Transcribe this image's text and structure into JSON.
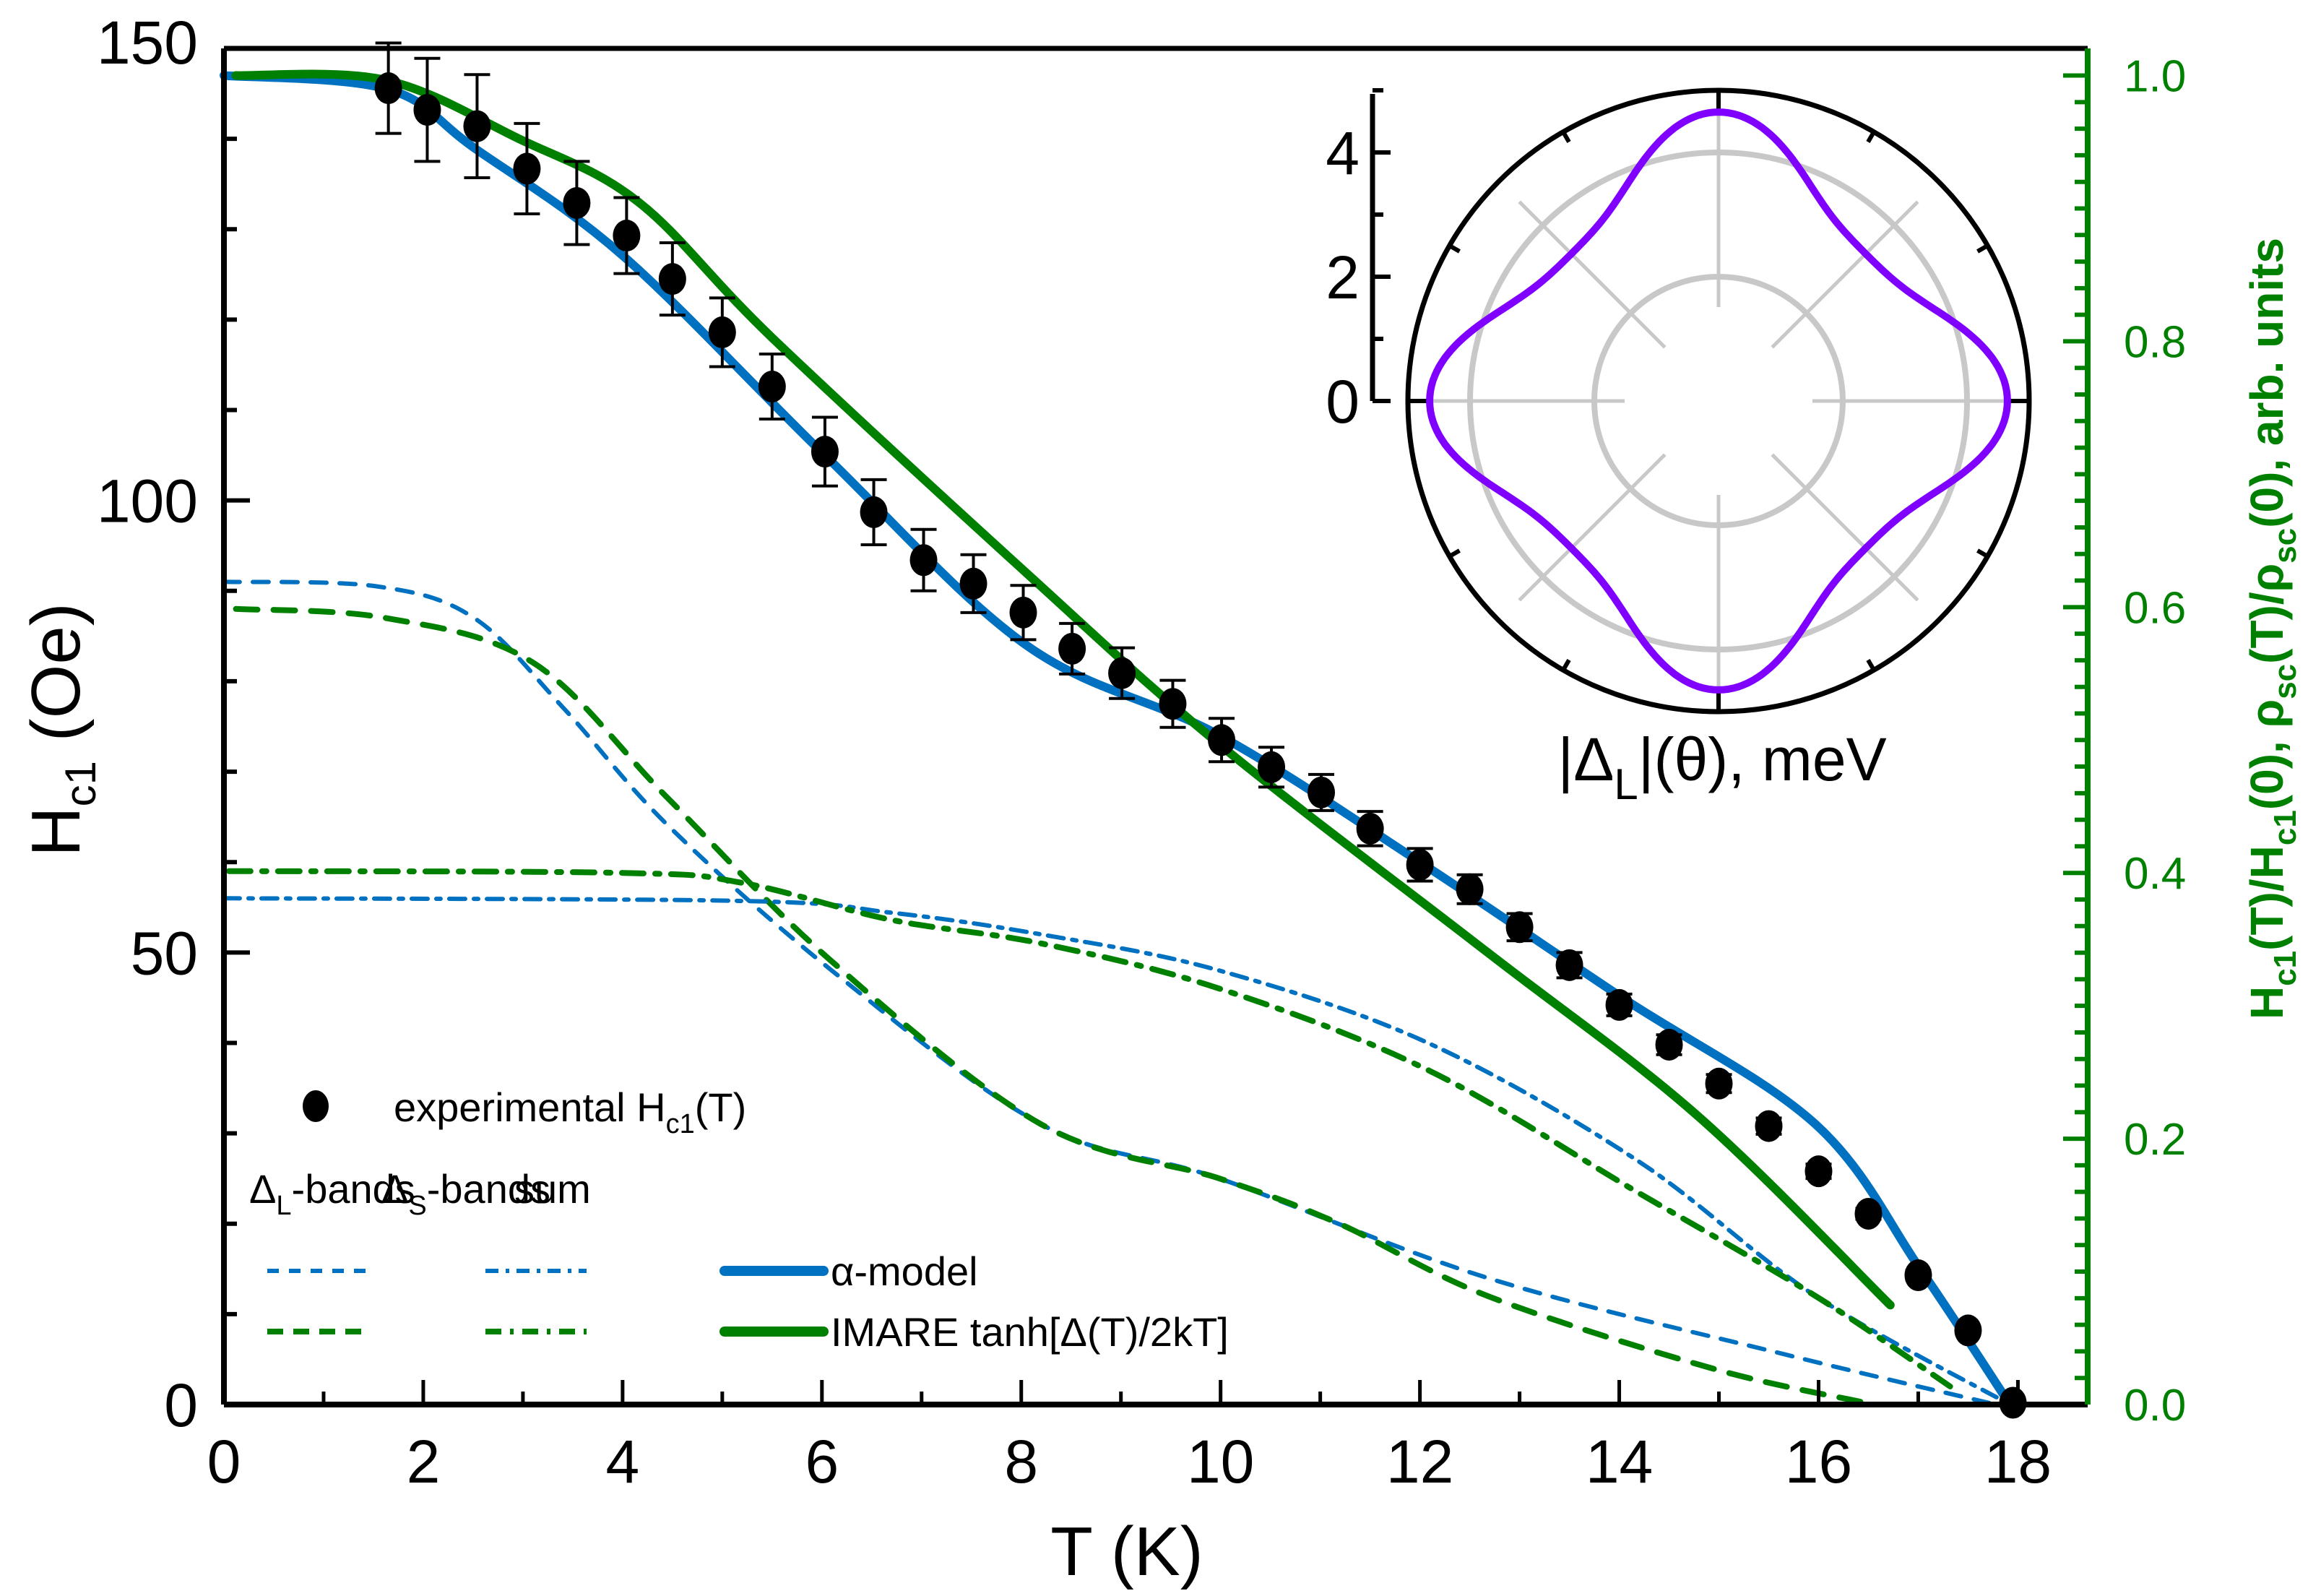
{
  "chart_data": {
    "type": "scatter",
    "title": "",
    "xlabel": "T (K)",
    "ylabel": {
      "main": "H",
      "sub": "c1",
      "unit": " (Oe)"
    },
    "ylabel_right": {
      "parts": [
        {
          "t": "H"
        },
        {
          "t": "c1",
          "sub": true
        },
        {
          "t": "(T)/H"
        },
        {
          "t": "c1",
          "sub": true
        },
        {
          "t": "(0), ρ"
        },
        {
          "t": "sc",
          "sub": true
        },
        {
          "t": "(T)/ρ"
        },
        {
          "t": "sc",
          "sub": true
        },
        {
          "t": "(0), arb. units"
        }
      ]
    },
    "xlim": [
      0,
      18.7
    ],
    "ylim": [
      0,
      150
    ],
    "ylim_right": [
      0,
      1.0
    ],
    "xticks": [
      "0",
      "2",
      "4",
      "6",
      "8",
      "10",
      "12",
      "14",
      "16",
      "18"
    ],
    "xtick_values": [
      0,
      2,
      4,
      6,
      8,
      10,
      12,
      14,
      16,
      18
    ],
    "yticks": [
      "0",
      "50",
      "100",
      "150"
    ],
    "ytick_values": [
      0,
      50,
      100,
      150
    ],
    "yticks_right": [
      "0.0",
      "0.2",
      "0.4",
      "0.6",
      "0.8",
      "1.0"
    ],
    "ytick_right_values": [
      0,
      0.2,
      0.4,
      0.6,
      0.8,
      1.0
    ],
    "grid": false,
    "legend_placement": "bottom-left",
    "colors": {
      "alpha": "#0070C0",
      "imare": "#008000",
      "points": "#000000",
      "polar": "#8000FF",
      "polar_grid": "#C8C8C8",
      "right_axis": "#008000"
    },
    "experimental": {
      "name": "experimental H_c1(T)",
      "T": [
        1.65,
        2.04,
        2.54,
        3.04,
        3.54,
        4.04,
        4.5,
        5.0,
        5.5,
        6.03,
        6.52,
        7.02,
        7.52,
        8.02,
        8.51,
        9.01,
        9.52,
        10.01,
        10.51,
        11.01,
        11.5,
        12.0,
        12.5,
        13.0,
        13.5,
        14.0,
        14.5,
        15.0,
        15.5,
        16.0,
        16.5,
        17.0,
        17.5,
        17.95
      ],
      "H": [
        145.6,
        143.2,
        141.4,
        136.7,
        132.9,
        129.3,
        124.5,
        118.6,
        112.6,
        105.4,
        98.7,
        93.4,
        90.8,
        87.6,
        83.6,
        80.9,
        77.5,
        73.5,
        70.5,
        67.7,
        63.7,
        59.7,
        57.0,
        52.8,
        48.6,
        44.2,
        39.8,
        35.5,
        30.8,
        25.8,
        21.1,
        14.3,
        8.2,
        0.2
      ],
      "err": [
        5.0,
        5.7,
        5.7,
        5.0,
        4.6,
        4.2,
        4.0,
        3.8,
        3.6,
        3.8,
        3.6,
        3.4,
        3.2,
        3.0,
        2.8,
        2.8,
        2.6,
        2.4,
        2.2,
        2.0,
        1.9,
        1.8,
        1.6,
        1.5,
        1.4,
        1.2,
        1.1,
        1.0,
        0.9,
        0.8,
        0.6,
        0.5,
        0.4,
        0.3
      ]
    },
    "series": [
      {
        "name": "α-model sum",
        "style": "solid",
        "color": "#0070C0",
        "T": [
          0,
          1.64,
          2.51,
          4.01,
          6.03,
          8.05,
          9.99,
          12.0,
          14.03,
          15.97,
          17.02,
          17.92
        ],
        "H": [
          147,
          145.5,
          139.0,
          127.0,
          105.0,
          84.0,
          74.0,
          60.0,
          45.0,
          31.0,
          15.0,
          0
        ]
      },
      {
        "name": "IMARE sum",
        "style": "solid",
        "color": "#008000",
        "T": [
          0.12,
          1.62,
          2.96,
          4.16,
          5.5,
          8.05,
          9.99,
          12.68,
          14.78,
          16.72
        ],
        "H": [
          147,
          146.5,
          140.0,
          133.0,
          118.0,
          92.0,
          73.0,
          50.0,
          32.0,
          11.0
        ]
      },
      {
        "name": "α-model ΔL-bands",
        "style": "dashed",
        "color": "#0070C0",
        "T": [
          0,
          1.53,
          2.51,
          3.41,
          4.46,
          6.1,
          8.2,
          9.99,
          12.68,
          15.68,
          17.78
        ],
        "H": [
          91,
          90.5,
          87.0,
          77.0,
          64.0,
          48.0,
          31.0,
          25.0,
          14.0,
          5.5,
          0
        ]
      },
      {
        "name": "IMARE ΔL-bands",
        "style": "dashed",
        "color": "#008000",
        "T": [
          0.12,
          1.62,
          3.11,
          4.46,
          6.1,
          8.2,
          9.99,
          11.19,
          12.68,
          14.93,
          16.42
        ],
        "H": [
          88,
          87.0,
          82.0,
          67.0,
          49.0,
          31.0,
          25.0,
          20.0,
          12.0,
          4.0,
          0.3
        ]
      },
      {
        "name": "α-model ΔS-bands",
        "style": "dashdotdot",
        "color": "#0070C0",
        "T": [
          0,
          5.2,
          6.7,
          8.2,
          9.99,
          12.08,
          14.18,
          15.97,
          17.92
        ],
        "H": [
          56,
          55.7,
          54.4,
          52.0,
          48.0,
          40.0,
          27.0,
          12.0,
          0
        ]
      },
      {
        "name": "IMARE ΔS-bands",
        "style": "dashdot",
        "color": "#008000",
        "T": [
          0.05,
          4.01,
          5.2,
          6.7,
          8.2,
          9.99,
          12.08,
          14.18,
          15.97,
          17.32
        ],
        "H": [
          59,
          58.8,
          57.7,
          53.6,
          51.0,
          46.0,
          37.0,
          23.5,
          12.0,
          2.0
        ]
      }
    ],
    "legend": {
      "experimental_label": "experimental H",
      "experimental_sub": "c1",
      "experimental_tail": "(T)",
      "col_headers": [
        {
          "main": "Δ",
          "sub": "L",
          "tail": "-bands"
        },
        {
          "main": "Δ",
          "sub": "S",
          "tail": "-bands"
        },
        {
          "main": "sum",
          "sub": "",
          "tail": ""
        }
      ],
      "rows": [
        {
          "label": "α-model",
          "color": "#0070C0"
        },
        {
          "label": "IMARE tanh[Δ(T)/2kT]",
          "color": "#008000"
        }
      ]
    },
    "inset": {
      "type": "polar",
      "title_parts": [
        {
          "t": "|Δ"
        },
        {
          "t": "L",
          "sub": true
        },
        {
          "t": "|(θ), meV"
        }
      ],
      "rlim": [
        0,
        5
      ],
      "rticks": [
        "0",
        "2",
        "4"
      ],
      "rtick_values": [
        0,
        2,
        4
      ],
      "grid_circles": [
        2,
        4
      ],
      "curve": {
        "model": "r = 3.9 + 0.65·cos(4θ) + 0.1·cos(8θ)",
        "r_at_0deg": 4.65,
        "r_at_45deg": 3.35,
        "r_at_90deg": 4.65
      }
    }
  }
}
